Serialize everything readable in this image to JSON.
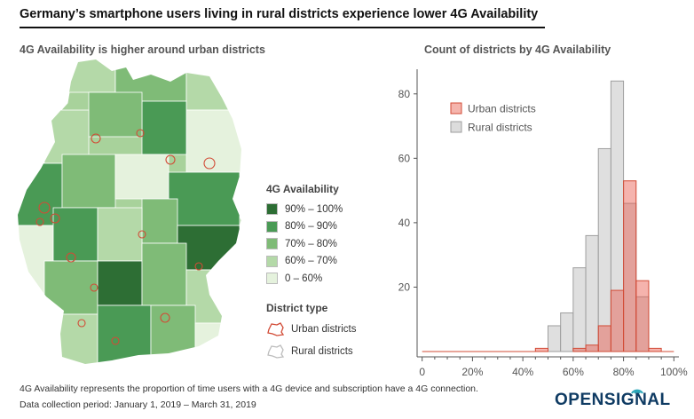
{
  "title": "Germany’s smartphone users living in rural districts experience lower 4G Availability",
  "map_panel": {
    "subtitle": "4G Availability is higher around urban districts",
    "legend_title": "4G Availability",
    "legend_items": [
      {
        "label": "90% – 100%",
        "color": "#2d6e34"
      },
      {
        "label": "80% – 90%",
        "color": "#4a9a55"
      },
      {
        "label": "70% – 80%",
        "color": "#7fbb77"
      },
      {
        "label": "60% – 70%",
        "color": "#b4d9a8"
      },
      {
        "label": "0 – 60%",
        "color": "#e5f2dd"
      }
    ],
    "district_type_title": "District type",
    "district_types": [
      {
        "label": "Urban districts",
        "color": "#d24b36"
      },
      {
        "label": "Rural districts",
        "color": "#bdbdbd"
      }
    ]
  },
  "histogram_panel": {
    "subtitle": "Count of districts by 4G Availability"
  },
  "chart_data": {
    "type": "bar",
    "x": [
      40,
      45,
      50,
      55,
      60,
      65,
      70,
      75,
      80,
      85,
      90
    ],
    "xlim": [
      -2,
      102
    ],
    "ylim": [
      0,
      86
    ],
    "xticks": [
      "0",
      "20%",
      "40%",
      "60%",
      "80%",
      "100%"
    ],
    "yticks": [
      20,
      40,
      60,
      80
    ],
    "bin_width": 5,
    "series": [
      {
        "name": "Urban districts",
        "color": "#d24b36",
        "values": [
          0,
          1,
          0,
          0,
          1,
          2,
          8,
          19,
          53,
          22,
          1
        ]
      },
      {
        "name": "Rural districts",
        "color": "#9e9e9e",
        "values": [
          0,
          0,
          8,
          12,
          26,
          36,
          63,
          84,
          46,
          17,
          0
        ]
      }
    ],
    "legend_position": "top-left",
    "grid": false
  },
  "footnotes": [
    "4G Availability represents the proportion of time users with a 4G device and subscription have a 4G connection.",
    "Data collection period: January 1, 2019 – March 31, 2019"
  ],
  "logo": "OPENSIGNAL",
  "icons": [
    "urban-district-outline-icon",
    "rural-district-outline-icon",
    "opensignal-signal-icon"
  ]
}
